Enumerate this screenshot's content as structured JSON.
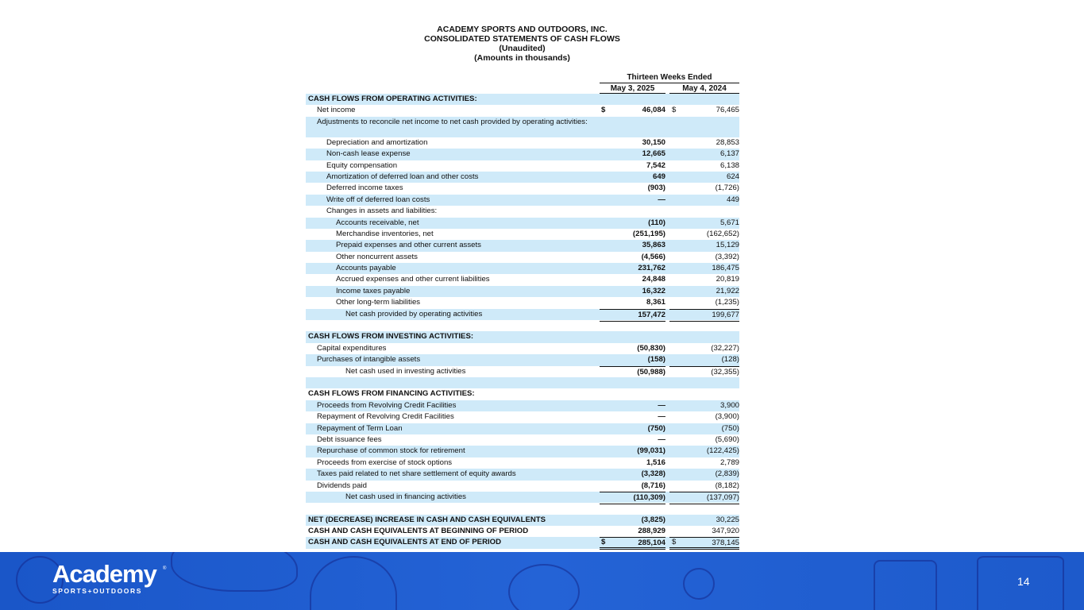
{
  "title": [
    "ACADEMY SPORTS AND OUTDOORS, INC.",
    "CONSOLIDATED STATEMENTS OF CASH FLOWS",
    "(Unaudited)",
    "(Amounts in thousands)"
  ],
  "columns": {
    "span": "Thirteen Weeks Ended",
    "c1": "May 3, 2025",
    "c2": "May 4, 2024"
  },
  "rows": [
    {
      "label": "CASH FLOWS FROM OPERATING ACTIVITIES:",
      "lvl": 0,
      "hdr": true
    },
    {
      "label": "Net income",
      "lvl": 1,
      "v1": "46,084",
      "v2": "76,465",
      "cur": "$"
    },
    {
      "label": "Adjustments to reconcile net income to net cash provided by operating activities:",
      "lvl": 1,
      "tall": true
    },
    {
      "label": "Depreciation and amortization",
      "lvl": 2,
      "v1": "30,150",
      "v2": "28,853"
    },
    {
      "label": "Non-cash lease expense",
      "lvl": 2,
      "v1": "12,665",
      "v2": "6,137"
    },
    {
      "label": "Equity compensation",
      "lvl": 2,
      "v1": "7,542",
      "v2": "6,138"
    },
    {
      "label": "Amortization of deferred loan and other costs",
      "lvl": 2,
      "v1": "649",
      "v2": "624"
    },
    {
      "label": "Deferred income taxes",
      "lvl": 2,
      "v1": "(903)",
      "v2": "(1,726)"
    },
    {
      "label": "Write off of deferred loan costs",
      "lvl": 2,
      "v1": "—",
      "v2": "449"
    },
    {
      "label": "Changes in assets and liabilities:",
      "lvl": 2
    },
    {
      "label": "Accounts receivable, net",
      "lvl": 3,
      "v1": "(110)",
      "v2": "5,671"
    },
    {
      "label": "Merchandise inventories, net",
      "lvl": 3,
      "v1": "(251,195)",
      "v2": "(162,652)"
    },
    {
      "label": "Prepaid expenses and other current assets",
      "lvl": 3,
      "v1": "35,863",
      "v2": "15,129"
    },
    {
      "label": "Other noncurrent assets",
      "lvl": 3,
      "v1": "(4,566)",
      "v2": "(3,392)"
    },
    {
      "label": "Accounts payable",
      "lvl": 3,
      "v1": "231,762",
      "v2": "186,475"
    },
    {
      "label": "Accrued expenses and other current liabilities",
      "lvl": 3,
      "v1": "24,848",
      "v2": "20,819"
    },
    {
      "label": "Income taxes payable",
      "lvl": 3,
      "v1": "16,322",
      "v2": "21,922"
    },
    {
      "label": "Other long-term liabilities",
      "lvl": 3,
      "v1": "8,361",
      "v2": "(1,235)"
    },
    {
      "label": "Net cash provided by operating activities",
      "lvl": 4,
      "v1": "157,472",
      "v2": "199,677",
      "tot": true
    },
    {
      "label": "",
      "lvl": 0
    },
    {
      "label": "CASH FLOWS FROM INVESTING ACTIVITIES:",
      "lvl": 0,
      "hdr": true
    },
    {
      "label": "Capital expenditures",
      "lvl": 1,
      "v1": "(50,830)",
      "v2": "(32,227)"
    },
    {
      "label": "Purchases of intangible assets",
      "lvl": 1,
      "v1": "(158)",
      "v2": "(128)"
    },
    {
      "label": "Net cash used in investing activities",
      "lvl": 4,
      "v1": "(50,988)",
      "v2": "(32,355)",
      "tot": true
    },
    {
      "label": "",
      "lvl": 0
    },
    {
      "label": "CASH FLOWS FROM FINANCING ACTIVITIES:",
      "lvl": 0,
      "hdr": true
    },
    {
      "label": "Proceeds from Revolving Credit Facilities",
      "lvl": 1,
      "v1": "—",
      "v2": "3,900"
    },
    {
      "label": "Repayment of Revolving Credit Facilities",
      "lvl": 1,
      "v1": "—",
      "v2": "(3,900)"
    },
    {
      "label": "Repayment of Term Loan",
      "lvl": 1,
      "v1": "(750)",
      "v2": "(750)"
    },
    {
      "label": "Debt issuance fees",
      "lvl": 1,
      "v1": "—",
      "v2": "(5,690)"
    },
    {
      "label": "Repurchase of common stock for retirement",
      "lvl": 1,
      "v1": "(99,031)",
      "v2": "(122,425)"
    },
    {
      "label": "Proceeds from exercise of stock options",
      "lvl": 1,
      "v1": "1,516",
      "v2": "2,789"
    },
    {
      "label": "Taxes paid related to net share settlement of equity awards",
      "lvl": 1,
      "v1": "(3,328)",
      "v2": "(2,839)"
    },
    {
      "label": "Dividends paid",
      "lvl": 1,
      "v1": "(8,716)",
      "v2": "(8,182)"
    },
    {
      "label": "Net cash used in financing activities",
      "lvl": 4,
      "v1": "(110,309)",
      "v2": "(137,097)",
      "tot": true
    },
    {
      "label": "",
      "lvl": 0
    },
    {
      "label": "NET (DECREASE) INCREASE IN CASH AND CASH EQUIVALENTS",
      "lvl": 0,
      "hdr": true,
      "v1": "(3,825)",
      "v2": "30,225"
    },
    {
      "label": "CASH AND CASH EQUIVALENTS AT BEGINNING OF PERIOD",
      "lvl": 0,
      "hdr": true,
      "v1": "288,929",
      "v2": "347,920"
    },
    {
      "label": "CASH AND CASH EQUIVALENTS AT END OF PERIOD",
      "lvl": 0,
      "hdr": true,
      "v1": "285,104",
      "v2": "378,145",
      "cur": "$",
      "dbl": true
    }
  ],
  "footer": {
    "logo_text": "Academy",
    "logo_sub": "SPORTS+OUTDOORS",
    "page": "14",
    "color": "#1f5cd0"
  },
  "colors": {
    "row_shade": "#cfeaf9"
  }
}
